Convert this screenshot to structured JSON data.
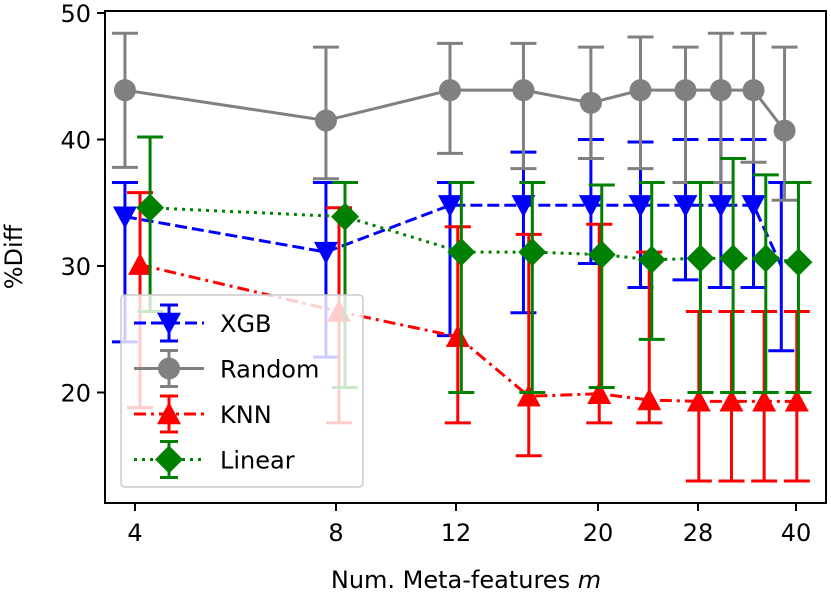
{
  "chart_data": {
    "type": "line",
    "title": "",
    "xlabel": "Num. Meta-features ",
    "xlabel_var": "m",
    "ylabel": "%Diff",
    "xticks": [
      "4",
      "8",
      "12",
      "20",
      "28",
      "40"
    ],
    "xtick_values": [
      4,
      8,
      12,
      20,
      28,
      40
    ],
    "yticks": [
      "20",
      "30",
      "40",
      "50"
    ],
    "ytick_values": [
      20,
      30,
      40,
      50
    ],
    "ylim": [
      10.5,
      50
    ],
    "xlim": [
      3.6,
      43
    ],
    "legend_position": "lower-left",
    "series": [
      {
        "name": "XGB",
        "color": "#0000ff",
        "dash": "dashed",
        "marker": "triangle-down",
        "x": [
          3.8,
          7.8,
          11.8,
          15.8,
          19.6,
          23.4,
          27.0,
          30.8,
          34.8
        ],
        "y": [
          33.9,
          31.1,
          34.8,
          34.8,
          34.8,
          34.8,
          34.8,
          34.8,
          34.8
        ],
        "err_low": [
          24.0,
          22.8,
          24.5,
          26.3,
          30.2,
          28.3,
          28.9,
          28.3,
          28.3
        ],
        "err_high": [
          36.6,
          36.6,
          36.6,
          39.0,
          40.0,
          39.8,
          40.0,
          40.0,
          40.0
        ],
        "tail_x": [
          38.2
        ],
        "tail_y": [
          30.0
        ],
        "tail_low": [
          23.3
        ],
        "tail_high": [
          36.6
        ]
      },
      {
        "name": "Random",
        "color": "#808080",
        "dash": "solid",
        "marker": "circle",
        "x": [
          3.8,
          7.8,
          11.8,
          15.8,
          19.6,
          23.4,
          27.0,
          30.8,
          34.8,
          38.6
        ],
        "y": [
          43.9,
          41.5,
          43.9,
          43.9,
          42.9,
          43.9,
          43.9,
          43.9,
          43.9,
          40.7
        ],
        "err_low": [
          37.8,
          36.9,
          38.9,
          37.7,
          38.5,
          37.7,
          36.6,
          36.6,
          38.2,
          35.2
        ],
        "err_high": [
          48.4,
          47.3,
          47.6,
          47.6,
          47.3,
          48.1,
          47.3,
          48.4,
          48.4,
          47.3
        ]
      },
      {
        "name": "KNN",
        "color": "#ff0000",
        "dash": "dashdot",
        "marker": "triangle-up",
        "x": [
          4.1,
          8.1,
          12.1,
          16.1,
          20.1,
          24.1,
          28.1,
          32.1,
          36.1,
          40.1
        ],
        "y": [
          30.1,
          26.4,
          24.4,
          19.7,
          19.9,
          19.4,
          19.3,
          19.3,
          19.3,
          19.3
        ],
        "err_low": [
          18.8,
          17.6,
          17.6,
          15.0,
          17.6,
          17.6,
          13.0,
          13.0,
          13.0,
          13.0
        ],
        "err_high": [
          35.8,
          34.6,
          33.1,
          32.5,
          33.3,
          31.1,
          26.4,
          26.4,
          26.4,
          26.4
        ]
      },
      {
        "name": "Linear",
        "color": "#008000",
        "dash": "dotted",
        "marker": "diamond",
        "x": [
          4.3,
          8.3,
          12.3,
          16.3,
          20.3,
          24.3,
          28.3,
          32.3,
          36.3,
          40.3
        ],
        "y": [
          34.6,
          33.9,
          31.1,
          31.1,
          30.9,
          30.5,
          30.6,
          30.6,
          30.6,
          30.3
        ],
        "err_low": [
          26.4,
          20.4,
          20.0,
          20.0,
          20.4,
          24.2,
          20.0,
          20.0,
          20.0,
          20.0
        ],
        "err_high": [
          40.2,
          36.6,
          36.6,
          36.6,
          36.4,
          36.6,
          36.6,
          38.5,
          37.2,
          36.6
        ]
      }
    ]
  }
}
